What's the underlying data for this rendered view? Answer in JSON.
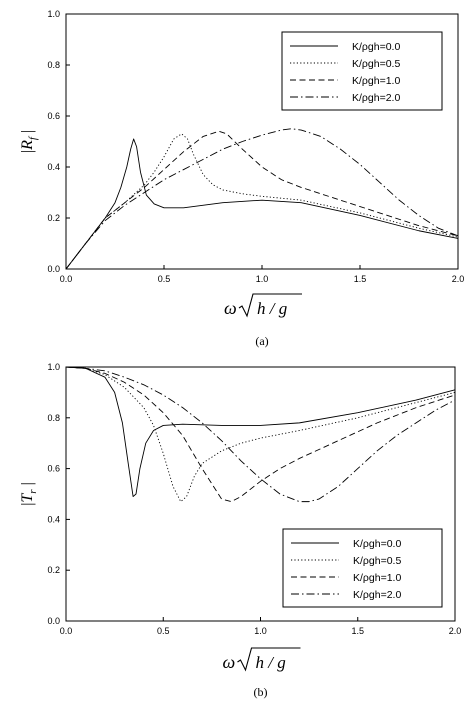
{
  "chart_data": [
    {
      "type": "line",
      "caption": "(a)",
      "xlabel": "ω√(h / g)",
      "ylabel": "|R_f|",
      "xlim": [
        0,
        2
      ],
      "ylim": [
        0,
        1
      ],
      "xticks": [
        "0.0",
        "0.5",
        "1.0",
        "1.5",
        "2.0"
      ],
      "yticks": [
        "0.0",
        "0.2",
        "0.4",
        "0.6",
        "0.8",
        "1.0"
      ],
      "legend_position": "top-right",
      "series": [
        {
          "name": "K/ρgh=0.0",
          "style": "solid",
          "x": [
            0,
            0.1,
            0.2,
            0.25,
            0.28,
            0.31,
            0.33,
            0.345,
            0.36,
            0.38,
            0.41,
            0.45,
            0.5,
            0.6,
            0.8,
            1.0,
            1.2,
            1.5,
            1.8,
            2.0
          ],
          "y": [
            0,
            0.1,
            0.2,
            0.26,
            0.32,
            0.4,
            0.47,
            0.51,
            0.48,
            0.38,
            0.29,
            0.255,
            0.24,
            0.24,
            0.26,
            0.27,
            0.26,
            0.21,
            0.15,
            0.12
          ]
        },
        {
          "name": "K/ρgh=0.5",
          "style": "dotted",
          "x": [
            0,
            0.1,
            0.2,
            0.3,
            0.4,
            0.45,
            0.5,
            0.55,
            0.59,
            0.62,
            0.65,
            0.7,
            0.75,
            0.8,
            0.9,
            1.0,
            1.2,
            1.5,
            1.8,
            2.0
          ],
          "y": [
            0,
            0.1,
            0.2,
            0.26,
            0.33,
            0.38,
            0.44,
            0.51,
            0.53,
            0.51,
            0.45,
            0.37,
            0.33,
            0.31,
            0.295,
            0.285,
            0.27,
            0.22,
            0.16,
            0.125
          ]
        },
        {
          "name": "K/ρgh=1.0",
          "style": "dashed",
          "x": [
            0,
            0.1,
            0.2,
            0.3,
            0.4,
            0.5,
            0.6,
            0.7,
            0.78,
            0.82,
            0.9,
            1.0,
            1.1,
            1.2,
            1.4,
            1.6,
            1.8,
            2.0
          ],
          "y": [
            0,
            0.1,
            0.2,
            0.26,
            0.32,
            0.39,
            0.46,
            0.52,
            0.54,
            0.53,
            0.47,
            0.4,
            0.35,
            0.32,
            0.27,
            0.22,
            0.17,
            0.13
          ]
        },
        {
          "name": "K/ρgh=2.0",
          "style": "dash-dot",
          "x": [
            0,
            0.1,
            0.2,
            0.3,
            0.4,
            0.5,
            0.6,
            0.7,
            0.8,
            0.9,
            1.0,
            1.1,
            1.15,
            1.2,
            1.3,
            1.4,
            1.5,
            1.6,
            1.7,
            1.8,
            1.9,
            2.0
          ],
          "y": [
            0,
            0.1,
            0.19,
            0.25,
            0.3,
            0.35,
            0.39,
            0.43,
            0.47,
            0.5,
            0.525,
            0.545,
            0.55,
            0.545,
            0.52,
            0.47,
            0.41,
            0.34,
            0.27,
            0.21,
            0.16,
            0.13
          ]
        }
      ]
    },
    {
      "type": "line",
      "caption": "(b)",
      "xlabel": "ω√(h / g)",
      "ylabel": "|T_r|",
      "xlim": [
        0,
        2
      ],
      "ylim": [
        0,
        1
      ],
      "xticks": [
        "0.0",
        "0.5",
        "1.0",
        "1.5",
        "2.0"
      ],
      "yticks": [
        "0.0",
        "0.2",
        "0.4",
        "0.6",
        "0.8",
        "1.0"
      ],
      "legend_position": "bottom-right",
      "series": [
        {
          "name": "K/ρgh=0.0",
          "style": "solid",
          "x": [
            0,
            0.1,
            0.2,
            0.25,
            0.29,
            0.32,
            0.345,
            0.36,
            0.38,
            0.41,
            0.45,
            0.5,
            0.6,
            0.8,
            1.0,
            1.2,
            1.5,
            1.8,
            2.0
          ],
          "y": [
            1,
            0.995,
            0.96,
            0.9,
            0.78,
            0.62,
            0.49,
            0.5,
            0.6,
            0.7,
            0.75,
            0.77,
            0.775,
            0.77,
            0.77,
            0.78,
            0.82,
            0.87,
            0.91
          ]
        },
        {
          "name": "K/ρgh=0.5",
          "style": "dotted",
          "x": [
            0,
            0.1,
            0.2,
            0.3,
            0.4,
            0.45,
            0.5,
            0.55,
            0.59,
            0.62,
            0.66,
            0.7,
            0.8,
            0.9,
            1.0,
            1.2,
            1.5,
            1.8,
            2.0
          ],
          "y": [
            1,
            0.995,
            0.97,
            0.92,
            0.84,
            0.77,
            0.66,
            0.53,
            0.47,
            0.49,
            0.57,
            0.62,
            0.67,
            0.7,
            0.72,
            0.75,
            0.8,
            0.86,
            0.9
          ]
        },
        {
          "name": "K/ρgh=1.0",
          "style": "dashed",
          "x": [
            0,
            0.1,
            0.2,
            0.3,
            0.4,
            0.5,
            0.6,
            0.7,
            0.8,
            0.85,
            0.9,
            1.0,
            1.1,
            1.2,
            1.4,
            1.6,
            1.8,
            2.0
          ],
          "y": [
            1,
            0.995,
            0.975,
            0.94,
            0.89,
            0.82,
            0.73,
            0.6,
            0.48,
            0.47,
            0.49,
            0.55,
            0.6,
            0.64,
            0.71,
            0.78,
            0.84,
            0.89
          ]
        },
        {
          "name": "K/ρgh=2.0",
          "style": "dash-dot",
          "x": [
            0,
            0.1,
            0.2,
            0.3,
            0.4,
            0.5,
            0.6,
            0.7,
            0.8,
            0.9,
            1.0,
            1.1,
            1.2,
            1.25,
            1.3,
            1.4,
            1.5,
            1.6,
            1.7,
            1.8,
            1.9,
            2.0
          ],
          "y": [
            1,
            0.995,
            0.985,
            0.96,
            0.93,
            0.89,
            0.84,
            0.78,
            0.71,
            0.63,
            0.56,
            0.5,
            0.47,
            0.47,
            0.48,
            0.53,
            0.6,
            0.67,
            0.73,
            0.78,
            0.83,
            0.87
          ]
        }
      ]
    }
  ]
}
